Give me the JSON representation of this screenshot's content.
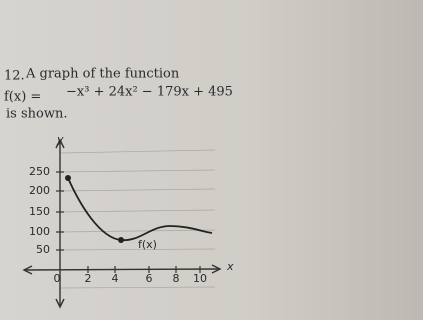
{
  "problem": {
    "number": "12.",
    "line1": "A graph of the function",
    "lhs": "f(x) =",
    "rhs": "−x³ + 24x² − 179x + 495",
    "line3": "is shown."
  },
  "graph": {
    "y_label": "y",
    "x_label": "x",
    "curve_label": "f(x)",
    "y_ticks": [
      "250",
      "200",
      "150",
      "100",
      "50"
    ],
    "x_ticks": [
      "0",
      "2",
      "4",
      "6",
      "8",
      "10"
    ]
  }
}
